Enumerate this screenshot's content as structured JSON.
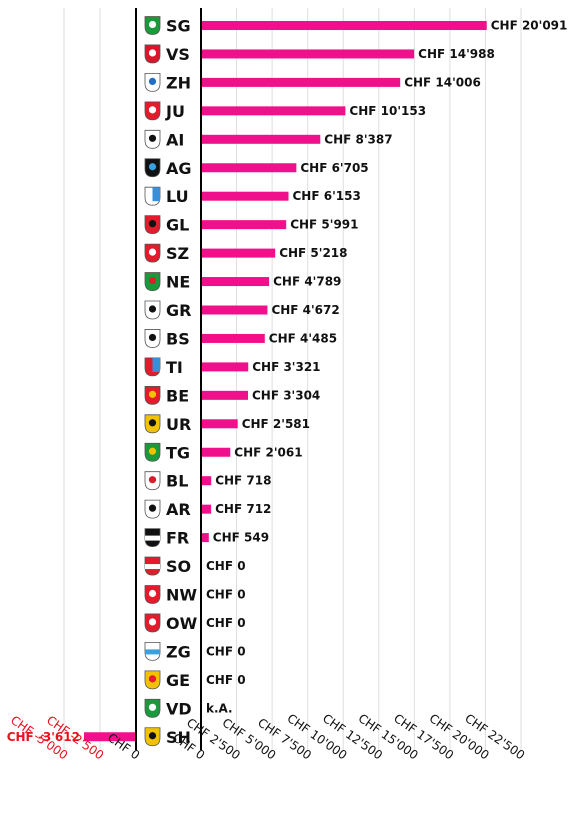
{
  "chart_data": {
    "type": "bar",
    "orientation": "horizontal",
    "bar_color": "#f0108c",
    "negative_label_color": "#e8111c",
    "grid": true,
    "panels": [
      {
        "xlim": [
          -5000,
          0
        ],
        "ticks": [
          {
            "value": -5000,
            "label": "CHF -5'000",
            "color": "#e8111c"
          },
          {
            "value": -2500,
            "label": "CHF -2'500",
            "color": "#e8111c"
          },
          {
            "value": 0,
            "label": "CHF 0",
            "color": "#111111"
          }
        ]
      },
      {
        "xlim": [
          0,
          22500
        ],
        "ticks": [
          {
            "value": 0,
            "label": "CHF 0"
          },
          {
            "value": 2500,
            "label": "CHF 2'500"
          },
          {
            "value": 5000,
            "label": "CHF 5'000"
          },
          {
            "value": 7500,
            "label": "CHF 7'500"
          },
          {
            "value": 10000,
            "label": "CHF 10'000"
          },
          {
            "value": 12500,
            "label": "CHF 12'500"
          },
          {
            "value": 15000,
            "label": "CHF 15'000"
          },
          {
            "value": 17500,
            "label": "CHF 17'500"
          },
          {
            "value": 20000,
            "label": "CHF 20'000"
          },
          {
            "value": 22500,
            "label": "CHF 22'500"
          }
        ]
      }
    ],
    "categories": [
      {
        "code": "SG",
        "value": 20091,
        "label": "CHF 20'091",
        "coat": "sg-coat-icon"
      },
      {
        "code": "VS",
        "value": 14988,
        "label": "CHF 14'988",
        "coat": "vs-coat-icon"
      },
      {
        "code": "ZH",
        "value": 14006,
        "label": "CHF 14'006",
        "coat": "zh-coat-icon"
      },
      {
        "code": "JU",
        "value": 10153,
        "label": "CHF 10'153",
        "coat": "ju-coat-icon"
      },
      {
        "code": "AI",
        "value": 8387,
        "label": "CHF 8'387",
        "coat": "ai-coat-icon"
      },
      {
        "code": "AG",
        "value": 6705,
        "label": "CHF 6'705",
        "coat": "ag-coat-icon"
      },
      {
        "code": "LU",
        "value": 6153,
        "label": "CHF 6'153",
        "coat": "lu-coat-icon"
      },
      {
        "code": "GL",
        "value": 5991,
        "label": "CHF 5'991",
        "coat": "gl-coat-icon"
      },
      {
        "code": "SZ",
        "value": 5218,
        "label": "CHF 5'218",
        "coat": "sz-coat-icon"
      },
      {
        "code": "NE",
        "value": 4789,
        "label": "CHF 4'789",
        "coat": "ne-coat-icon"
      },
      {
        "code": "GR",
        "value": 4672,
        "label": "CHF 4'672",
        "coat": "gr-coat-icon"
      },
      {
        "code": "BS",
        "value": 4485,
        "label": "CHF 4'485",
        "coat": "bs-coat-icon"
      },
      {
        "code": "TI",
        "value": 3321,
        "label": "CHF 3'321",
        "coat": "ti-coat-icon"
      },
      {
        "code": "BE",
        "value": 3304,
        "label": "CHF 3'304",
        "coat": "be-coat-icon"
      },
      {
        "code": "UR",
        "value": 2581,
        "label": "CHF 2'581",
        "coat": "ur-coat-icon"
      },
      {
        "code": "TG",
        "value": 2061,
        "label": "CHF 2'061",
        "coat": "tg-coat-icon"
      },
      {
        "code": "BL",
        "value": 718,
        "label": "CHF 718",
        "coat": "bl-coat-icon"
      },
      {
        "code": "AR",
        "value": 712,
        "label": "CHF 712",
        "coat": "ar-coat-icon"
      },
      {
        "code": "FR",
        "value": 549,
        "label": "CHF 549",
        "coat": "fr-coat-icon"
      },
      {
        "code": "SO",
        "value": 0,
        "label": "CHF 0",
        "coat": "so-coat-icon"
      },
      {
        "code": "NW",
        "value": 0,
        "label": "CHF 0",
        "coat": "nw-coat-icon"
      },
      {
        "code": "OW",
        "value": 0,
        "label": "CHF 0",
        "coat": "ow-coat-icon"
      },
      {
        "code": "ZG",
        "value": 0,
        "label": "CHF 0",
        "coat": "zg-coat-icon"
      },
      {
        "code": "GE",
        "value": 0,
        "label": "CHF 0",
        "coat": "ge-coat-icon"
      },
      {
        "code": "VD",
        "value": null,
        "label": "k.A.",
        "coat": "vd-coat-icon"
      },
      {
        "code": "SH",
        "value": -3612,
        "label": "CHF -3'612",
        "coat": "sh-coat-icon"
      }
    ]
  }
}
